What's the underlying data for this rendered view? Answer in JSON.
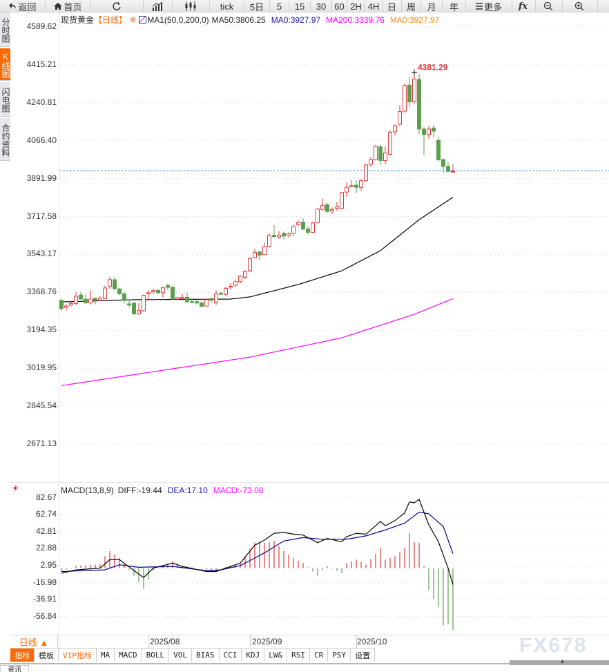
{
  "toolbar": {
    "items": [
      {
        "label": "返回",
        "icon": "back-arrow-icon"
      },
      {
        "label": "首页",
        "icon": "home-icon"
      },
      {
        "label": "",
        "icon": "refresh-icon"
      },
      {
        "label": "",
        "icon": "bar-chart-icon"
      },
      {
        "label": "",
        "icon": "candlestick-icon"
      },
      {
        "label": "tick"
      },
      {
        "label": "5日"
      },
      {
        "label": "5"
      },
      {
        "label": "15"
      },
      {
        "label": "30"
      },
      {
        "label": "60"
      },
      {
        "label": "2H"
      },
      {
        "label": "4H"
      },
      {
        "label": "日"
      },
      {
        "label": "周"
      },
      {
        "label": "月"
      },
      {
        "label": "年"
      },
      {
        "label": "更多",
        "icon": "menu-icon"
      },
      {
        "label": "fx",
        "icon": "function-icon"
      },
      {
        "label": "",
        "icon": "zoom-out-icon"
      },
      {
        "label": "",
        "icon": "zoom-in-icon"
      }
    ]
  },
  "left_tabs": [
    "分时图",
    "K线图",
    "闪电图",
    "合约资料"
  ],
  "legend": {
    "symbol": "现货黄金",
    "period": "【日线】",
    "ma_set": "MA1(50,0,200,0)",
    "ma50": "MA50:3806.25",
    "ma0_blue": "MA0:3927.97",
    "ma200": "MA200:3339.76",
    "ma0_orange": "MA0:3927.97"
  },
  "macd_legend": {
    "name": "MACD(13,8,9)",
    "diff": "DIFF:-19.44",
    "dea": "DEA:17.10",
    "macd": "MACD:-73.08"
  },
  "colors": {
    "up": "#e03a3a",
    "down": "#5c9e4e",
    "ma50": "#000000",
    "ma200": "#ff00ff",
    "last_price": "#1e90ff",
    "accent": "#ff6a00",
    "dea": "#00008b"
  },
  "bottom": {
    "period_button": "日线 ▲",
    "dates": [
      "2025/08",
      "2025/09",
      "2025/10"
    ],
    "indicator_tabs": [
      "指标",
      "模板",
      "VIP指标",
      "MA",
      "MACD",
      "BOLL",
      "VOL",
      "BIAS",
      "CCI",
      "KDJ",
      "LW&",
      "RSI",
      "CR",
      "PSY",
      "设置"
    ],
    "news_tab": "资讯",
    "watermark": "FX678"
  },
  "chart_data": [
    {
      "type": "candlestick",
      "title": "现货黄金 日线",
      "y_ticks": [
        "4589.62",
        "4415.21",
        "4240.81",
        "4066.40",
        "3891.99",
        "3717.58",
        "3543.17",
        "3368.76",
        "3194.35",
        "3019.95",
        "2845.54",
        "2671.13"
      ],
      "ylim": [
        2671.13,
        4589.62
      ],
      "x_tick_labels": [
        "2025/08",
        "2025/09",
        "2025/10"
      ],
      "x_tick_index": [
        18,
        39,
        61
      ],
      "last_price": 3927.97,
      "max_label": "4381.29",
      "max_index": 73,
      "ohlc": [
        [
          3332,
          3340,
          3282,
          3294
        ],
        [
          3300,
          3315,
          3285,
          3306
        ],
        [
          3310,
          3325,
          3305,
          3318
        ],
        [
          3318,
          3370,
          3310,
          3351
        ],
        [
          3357,
          3372,
          3335,
          3338
        ],
        [
          3338,
          3360,
          3318,
          3320
        ],
        [
          3320,
          3378,
          3312,
          3338
        ],
        [
          3342,
          3345,
          3315,
          3332
        ],
        [
          3332,
          3350,
          3328,
          3342
        ],
        [
          3340,
          3400,
          3338,
          3389
        ],
        [
          3396,
          3440,
          3385,
          3427
        ],
        [
          3427,
          3440,
          3380,
          3385
        ],
        [
          3385,
          3390,
          3355,
          3362
        ],
        [
          3362,
          3370,
          3318,
          3332
        ],
        [
          3316,
          3330,
          3300,
          3311
        ],
        [
          3320,
          3323,
          3265,
          3270
        ],
        [
          3271,
          3320,
          3265,
          3285
        ],
        [
          3284,
          3360,
          3278,
          3355
        ],
        [
          3362,
          3380,
          3330,
          3367
        ],
        [
          3372,
          3385,
          3360,
          3377
        ],
        [
          3378,
          3382,
          3360,
          3368
        ],
        [
          3367,
          3395,
          3345,
          3390
        ],
        [
          3400,
          3410,
          3380,
          3392
        ],
        [
          3392,
          3400,
          3335,
          3338
        ],
        [
          3338,
          3348,
          3332,
          3344
        ],
        [
          3340,
          3362,
          3335,
          3346
        ],
        [
          3346,
          3368,
          3320,
          3326
        ],
        [
          3326,
          3340,
          3318,
          3322
        ],
        [
          3326,
          3340,
          3314,
          3320
        ],
        [
          3320,
          3330,
          3300,
          3304
        ],
        [
          3306,
          3340,
          3300,
          3335
        ],
        [
          3340,
          3345,
          3318,
          3332
        ],
        [
          3320,
          3378,
          3310,
          3362
        ],
        [
          3365,
          3375,
          3355,
          3360
        ],
        [
          3360,
          3395,
          3350,
          3387
        ],
        [
          3393,
          3410,
          3380,
          3397
        ],
        [
          3402,
          3428,
          3395,
          3418
        ],
        [
          3418,
          3448,
          3410,
          3443
        ],
        [
          3438,
          3470,
          3430,
          3465
        ],
        [
          3468,
          3530,
          3462,
          3525
        ],
        [
          3529,
          3570,
          3525,
          3552
        ],
        [
          3555,
          3560,
          3515,
          3540
        ],
        [
          3542,
          3598,
          3540,
          3580
        ],
        [
          3580,
          3640,
          3575,
          3630
        ],
        [
          3632,
          3680,
          3620,
          3625
        ],
        [
          3623,
          3650,
          3615,
          3632
        ],
        [
          3640,
          3648,
          3612,
          3628
        ],
        [
          3630,
          3645,
          3620,
          3638
        ],
        [
          3640,
          3680,
          3630,
          3671
        ],
        [
          3680,
          3700,
          3672,
          3690
        ],
        [
          3692,
          3710,
          3655,
          3660
        ],
        [
          3660,
          3672,
          3635,
          3645
        ],
        [
          3645,
          3695,
          3640,
          3688
        ],
        [
          3690,
          3757,
          3685,
          3752
        ],
        [
          3750,
          3800,
          3745,
          3768
        ],
        [
          3772,
          3780,
          3735,
          3741
        ],
        [
          3742,
          3760,
          3730,
          3750
        ],
        [
          3755,
          3786,
          3745,
          3762
        ],
        [
          3755,
          3830,
          3750,
          3828
        ],
        [
          3830,
          3875,
          3808,
          3852
        ],
        [
          3855,
          3885,
          3850,
          3860
        ],
        [
          3862,
          3885,
          3825,
          3852
        ],
        [
          3852,
          3890,
          3835,
          3882
        ],
        [
          3882,
          3960,
          3878,
          3955
        ],
        [
          3958,
          3990,
          3945,
          3980
        ],
        [
          3980,
          4048,
          3975,
          4040
        ],
        [
          4038,
          4048,
          3955,
          3975
        ],
        [
          3975,
          4040,
          3958,
          4010
        ],
        [
          4003,
          4115,
          4000,
          4105
        ],
        [
          4107,
          4140,
          4090,
          4135
        ],
        [
          4142,
          4230,
          4135,
          4200
        ],
        [
          4202,
          4328,
          4195,
          4320
        ],
        [
          4322,
          4360,
          4220,
          4245
        ],
        [
          4245,
          4381.29,
          4235,
          4350
        ],
        [
          4348,
          4375,
          4095,
          4120
        ],
        [
          4120,
          4130,
          4000,
          4095
        ],
        [
          4095,
          4135,
          4075,
          4120
        ],
        [
          4125,
          4140,
          4080,
          4110
        ],
        [
          4068,
          4085,
          3970,
          3978
        ],
        [
          3980,
          3985,
          3918,
          3948
        ],
        [
          3948,
          3968,
          3922,
          3925
        ],
        [
          3922,
          3957,
          3918,
          3927.97
        ]
      ],
      "ma50_anchors": [
        [
          0,
          3325
        ],
        [
          15,
          3335
        ],
        [
          35,
          3338
        ],
        [
          39,
          3348
        ],
        [
          49,
          3405
        ],
        [
          58,
          3468
        ],
        [
          66,
          3561
        ],
        [
          74,
          3703
        ],
        [
          81,
          3806.25
        ]
      ],
      "ma200_anchors": [
        [
          0,
          2940
        ],
        [
          39,
          3071
        ],
        [
          58,
          3160
        ],
        [
          73,
          3268
        ],
        [
          81,
          3339.76
        ]
      ]
    },
    {
      "type": "line+bar",
      "title": "MACD(13,8,9)",
      "y_ticks": [
        "82.67",
        "62.74",
        "42.81",
        "22.88",
        "2.95",
        "-16.98",
        "-36.91",
        "-56.84"
      ],
      "ylim": [
        -72,
        90
      ],
      "diff_anchors": [
        [
          0,
          -6
        ],
        [
          3,
          -2
        ],
        [
          8,
          0
        ],
        [
          10,
          10
        ],
        [
          12,
          10
        ],
        [
          16,
          -7
        ],
        [
          17,
          -11
        ],
        [
          19,
          0
        ],
        [
          23,
          6
        ],
        [
          25,
          2
        ],
        [
          30,
          -4
        ],
        [
          32,
          -4
        ],
        [
          37,
          6
        ],
        [
          40,
          27
        ],
        [
          42,
          33
        ],
        [
          44,
          41
        ],
        [
          46,
          42
        ],
        [
          48,
          40
        ],
        [
          50,
          39
        ],
        [
          53,
          30
        ],
        [
          55,
          35
        ],
        [
          58,
          31
        ],
        [
          59,
          37
        ],
        [
          61,
          41
        ],
        [
          63,
          40
        ],
        [
          66,
          55
        ],
        [
          67,
          50
        ],
        [
          69,
          56
        ],
        [
          71,
          65
        ],
        [
          72,
          78
        ],
        [
          73,
          77
        ],
        [
          74,
          81
        ],
        [
          76,
          51
        ],
        [
          78,
          31
        ],
        [
          80,
          0
        ],
        [
          81,
          -19.44
        ]
      ],
      "dea_anchors": [
        [
          0,
          -4
        ],
        [
          9,
          -2
        ],
        [
          12,
          4
        ],
        [
          16,
          1
        ],
        [
          23,
          2
        ],
        [
          30,
          -3
        ],
        [
          33,
          -2
        ],
        [
          37,
          3
        ],
        [
          42,
          18
        ],
        [
          46,
          32
        ],
        [
          50,
          36
        ],
        [
          54,
          34
        ],
        [
          59,
          34
        ],
        [
          63,
          38
        ],
        [
          67,
          45
        ],
        [
          71,
          53
        ],
        [
          74,
          66
        ],
        [
          76,
          64
        ],
        [
          79,
          49
        ],
        [
          81,
          17.1
        ]
      ],
      "histogram": "2*(DIFF-DEA)"
    }
  ]
}
